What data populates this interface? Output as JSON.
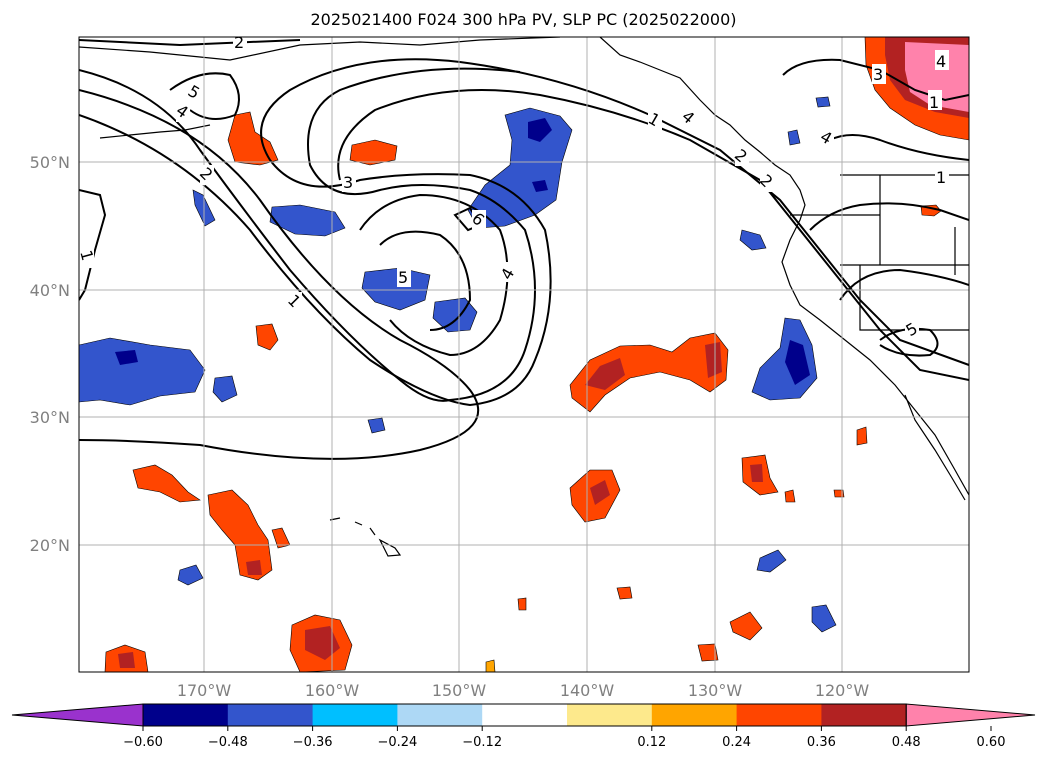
{
  "map": {
    "title": "2025021400 F024 300 hPa PV, SLP PC (2025022000)",
    "lat_labels": [
      "50°N",
      "40°N",
      "30°N",
      "20°N"
    ],
    "lon_labels": [
      "170°W",
      "160°W",
      "150°W",
      "140°W",
      "130°W",
      "120°W"
    ],
    "contour_labels": [
      "1",
      "1",
      "1",
      "1",
      "1",
      "2",
      "2",
      "2",
      "2",
      "3",
      "3",
      "4",
      "4",
      "4",
      "4",
      "4",
      "5",
      "5",
      "5",
      "6"
    ],
    "colors": {
      "coast": "#000000",
      "contour": "#000000",
      "grid": "#b0b0b0",
      "neg": [
        "#9a32cd",
        "#00008b",
        "#3355cc",
        "#00bfff",
        "#add8f5"
      ],
      "pos": [
        "#fde98c",
        "#ffa500",
        "#ff4500",
        "#b22222",
        "#ff82ab"
      ]
    }
  },
  "colorbar": {
    "tick_labels": [
      "−0.60",
      "−0.48",
      "−0.36",
      "−0.24",
      "−0.12",
      "0.12",
      "0.24",
      "0.36",
      "0.48",
      "0.60"
    ],
    "colors": [
      "#9a32cd",
      "#00008b",
      "#3355cc",
      "#00bfff",
      "#add8f5",
      "#ffffff",
      "#fde98c",
      "#ffa500",
      "#ff4500",
      "#b22222",
      "#ff82ab"
    ]
  }
}
